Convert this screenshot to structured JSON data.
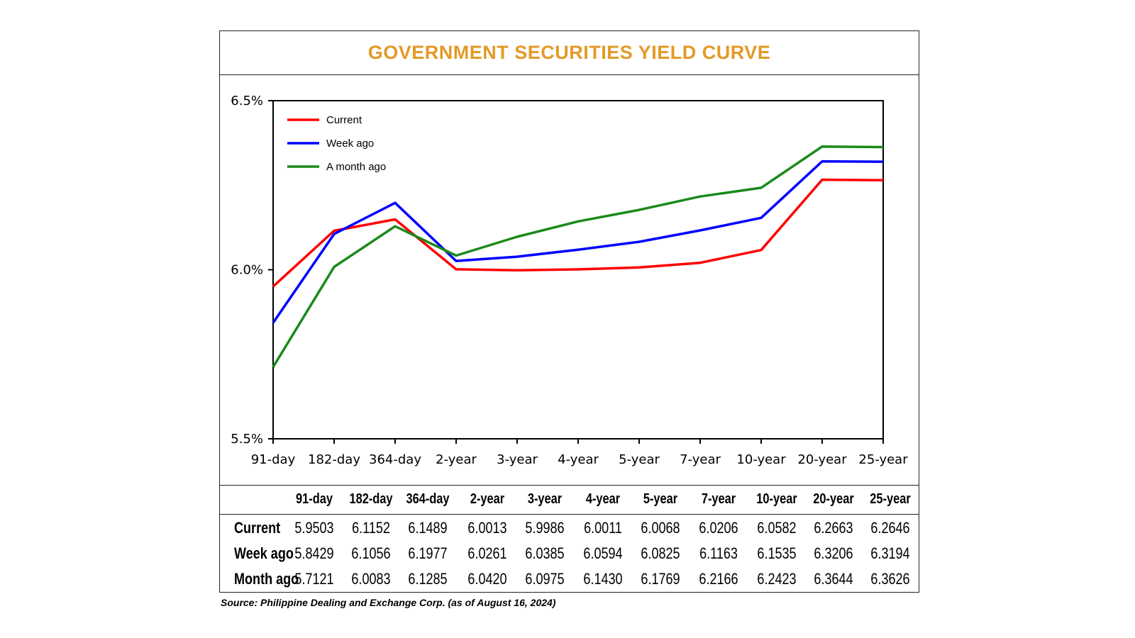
{
  "title": "GOVERNMENT SECURITIES YIELD CURVE",
  "source": "Source: Philippine Dealing and Exchange Corp. (as of August 16, 2024)",
  "chart_data": {
    "type": "line",
    "title": "GOVERNMENT SECURITIES YIELD CURVE",
    "categories": [
      "91-day",
      "182-day",
      "364-day",
      "2-year",
      "3-year",
      "4-year",
      "5-year",
      "7-year",
      "10-year",
      "20-year",
      "25-year"
    ],
    "ylim": [
      5.5,
      6.5
    ],
    "yticks": [
      5.5,
      6.0,
      6.5
    ],
    "ytick_labels": [
      "5.5%",
      "6.0%",
      "6.5%"
    ],
    "grid": false,
    "legend_position": "top-left",
    "series": [
      {
        "name": "Current",
        "color": "#ff0000",
        "values": [
          5.9503,
          6.1152,
          6.1489,
          6.0013,
          5.9986,
          6.0011,
          6.0068,
          6.0206,
          6.0582,
          6.2663,
          6.2646
        ]
      },
      {
        "name": "Week ago",
        "color": "#0000ff",
        "values": [
          5.8429,
          6.1056,
          6.1977,
          6.0261,
          6.0385,
          6.0594,
          6.0825,
          6.1163,
          6.1535,
          6.3206,
          6.3194
        ]
      },
      {
        "name": "A month ago",
        "color": "#1a8a1a",
        "values": [
          5.7121,
          6.0083,
          6.1285,
          6.042,
          6.0975,
          6.143,
          6.1769,
          6.2166,
          6.2423,
          6.3644,
          6.3626
        ]
      }
    ]
  },
  "table": {
    "headers": [
      "91-day",
      "182-day",
      "364-day",
      "2-year",
      "3-year",
      "4-year",
      "5-year",
      "7-year",
      "10-year",
      "20-year",
      "25-year"
    ],
    "rows": [
      {
        "label": "Current",
        "values": [
          "5.9503",
          "6.1152",
          "6.1489",
          "6.0013",
          "5.9986",
          "6.0011",
          "6.0068",
          "6.0206",
          "6.0582",
          "6.2663",
          "6.2646"
        ]
      },
      {
        "label": "Week ago",
        "values": [
          "5.8429",
          "6.1056",
          "6.1977",
          "6.0261",
          "6.0385",
          "6.0594",
          "6.0825",
          "6.1163",
          "6.1535",
          "6.3206",
          "6.3194"
        ]
      },
      {
        "label": "Month ago",
        "values": [
          "5.7121",
          "6.0083",
          "6.1285",
          "6.0420",
          "6.0975",
          "6.1430",
          "6.1769",
          "6.2166",
          "6.2423",
          "6.3644",
          "6.3626"
        ]
      }
    ]
  }
}
